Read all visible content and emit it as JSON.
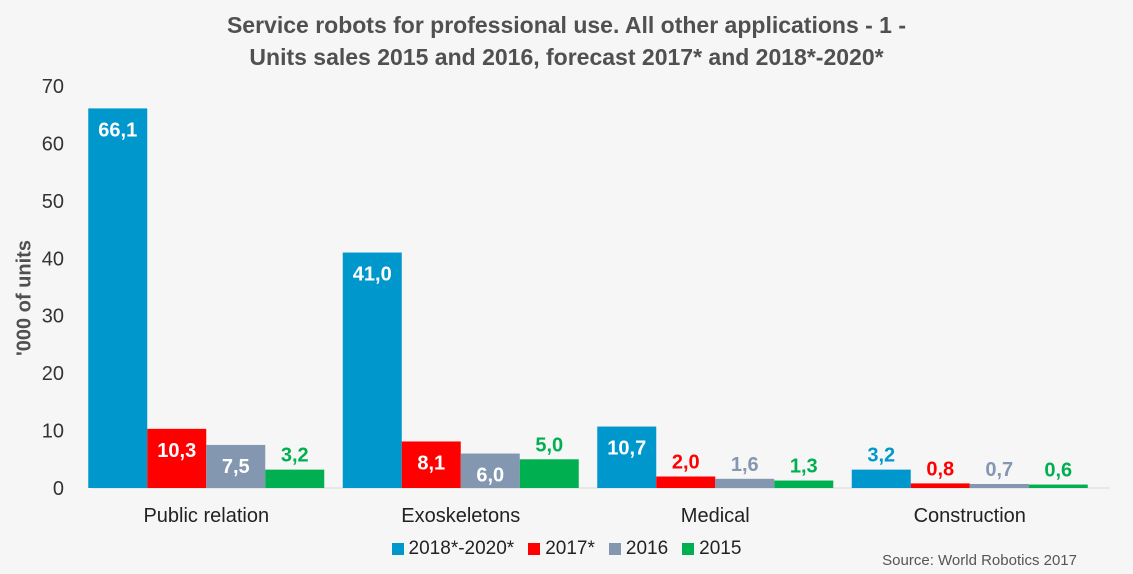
{
  "chart_data": {
    "type": "bar",
    "title": "Service robots for professional use. All other applications - 1 -",
    "subtitle": "Units sales 2015 and 2016, forecast 2017* and 2018*-2020*",
    "xlabel": "",
    "ylabel": "'000 of units",
    "ylim": [
      0,
      70
    ],
    "yticks": [
      "0",
      "10",
      "20",
      "30",
      "40",
      "50",
      "60",
      "70"
    ],
    "categories": [
      "Public relation",
      "Exoskeletons",
      "Medical",
      "Construction"
    ],
    "series": [
      {
        "name": "2018*-2020*",
        "color": "#0098cc",
        "values": [
          66.1,
          41.0,
          10.7,
          3.2
        ],
        "labels": [
          "66,1",
          "41,0",
          "10,7",
          "3,2"
        ]
      },
      {
        "name": "2017*",
        "color": "#ff0000",
        "values": [
          10.3,
          8.1,
          2.0,
          0.8
        ],
        "labels": [
          "10,3",
          "8,1",
          "2,0",
          "0,8"
        ]
      },
      {
        "name": "2016",
        "color": "#8497b0",
        "values": [
          7.5,
          6.0,
          1.6,
          0.7
        ],
        "labels": [
          "7,5",
          "6,0",
          "1,6",
          "0,7"
        ]
      },
      {
        "name": "2015",
        "color": "#00b050",
        "values": [
          3.2,
          5.0,
          1.3,
          0.6
        ],
        "labels": [
          "3,2",
          "5,0",
          "1,3",
          "0,6"
        ]
      }
    ],
    "grid": false,
    "legend_position": "bottom"
  },
  "source": "Source: World Robotics 2017"
}
